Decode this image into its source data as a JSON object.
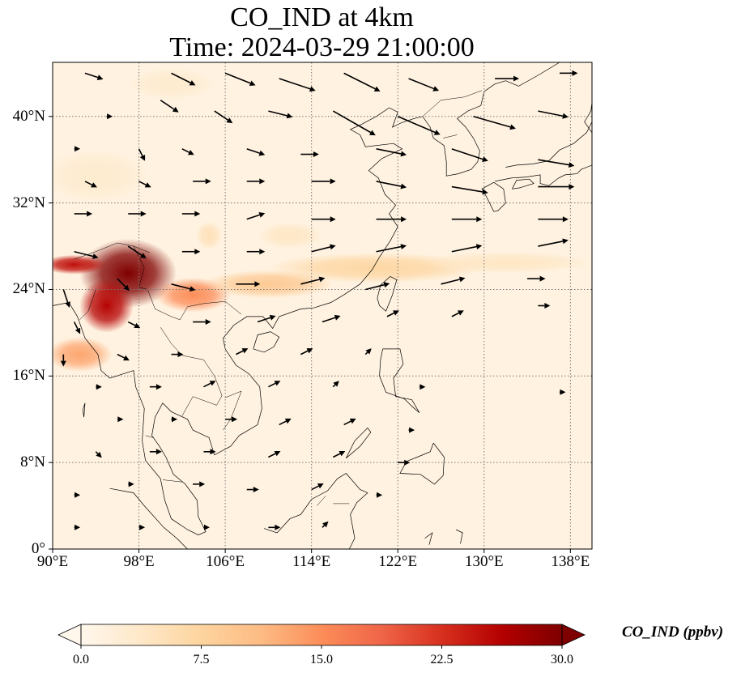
{
  "title": {
    "line1": "CO_IND at 4km",
    "line2": "Time: 2024-03-29 21:00:00"
  },
  "map": {
    "lon_range": [
      90,
      140
    ],
    "lat_range": [
      0,
      45
    ],
    "gridlines": true,
    "lat_ticks": [
      {
        "value": 0,
        "label": "0°"
      },
      {
        "value": 8,
        "label": "8°N"
      },
      {
        "value": 16,
        "label": "16°N"
      },
      {
        "value": 24,
        "label": "24°N"
      },
      {
        "value": 32,
        "label": "32°N"
      },
      {
        "value": 40,
        "label": "40°N"
      }
    ],
    "lon_ticks": [
      {
        "value": 90,
        "label": "90°E"
      },
      {
        "value": 98,
        "label": "98°E"
      },
      {
        "value": 106,
        "label": "106°E"
      },
      {
        "value": 114,
        "label": "114°E"
      },
      {
        "value": 122,
        "label": "122°E"
      },
      {
        "value": 130,
        "label": "130°E"
      },
      {
        "value": 138,
        "label": "138°E"
      }
    ],
    "field": "CO_IND",
    "plumes": [
      {
        "lon": 97,
        "lat": 25.5,
        "rlon": 4.5,
        "rlat": 3.2,
        "value": 30
      },
      {
        "lon": 95,
        "lat": 22.5,
        "rlon": 2.5,
        "rlat": 2.5,
        "value": 26
      },
      {
        "lon": 92,
        "lat": 26.3,
        "rlon": 3,
        "rlat": 0.9,
        "value": 25
      },
      {
        "lon": 103,
        "lat": 23.5,
        "rlon": 3.5,
        "rlat": 1.6,
        "value": 15
      },
      {
        "lon": 110,
        "lat": 24.5,
        "rlon": 6,
        "rlat": 1.3,
        "value": 9
      },
      {
        "lon": 120,
        "lat": 26,
        "rlon": 10,
        "rlat": 1.4,
        "value": 7
      },
      {
        "lon": 132,
        "lat": 26.5,
        "rlon": 8,
        "rlat": 1.0,
        "value": 4
      },
      {
        "lon": 104.5,
        "lat": 29,
        "rlon": 1.2,
        "rlat": 1.3,
        "value": 5
      },
      {
        "lon": 112,
        "lat": 29,
        "rlon": 3,
        "rlat": 1.2,
        "value": 4
      },
      {
        "lon": 92.5,
        "lat": 18,
        "rlon": 3,
        "rlat": 1.6,
        "value": 13
      },
      {
        "lon": 94,
        "lat": 34.5,
        "rlon": 5,
        "rlat": 2.5,
        "value": 3
      },
      {
        "lon": 101,
        "lat": 43,
        "rlon": 4,
        "rlat": 1.5,
        "value": 3
      }
    ],
    "wind_arrows": [
      {
        "lon": 93,
        "lat": 44,
        "u": 3,
        "v": -1
      },
      {
        "lon": 101,
        "lat": 44,
        "u": 4,
        "v": -2
      },
      {
        "lon": 106,
        "lat": 44,
        "u": 5,
        "v": -2
      },
      {
        "lon": 111,
        "lat": 43.5,
        "u": 6,
        "v": -2
      },
      {
        "lon": 117,
        "lat": 44,
        "u": 6,
        "v": -3
      },
      {
        "lon": 123,
        "lat": 43.5,
        "u": 5,
        "v": -2
      },
      {
        "lon": 131,
        "lat": 43.5,
        "u": 4,
        "v": 0
      },
      {
        "lon": 137,
        "lat": 44,
        "u": 3,
        "v": 0
      },
      {
        "lon": 95,
        "lat": 40,
        "u": 1,
        "v": 0
      },
      {
        "lon": 100,
        "lat": 41.5,
        "u": 3,
        "v": -2
      },
      {
        "lon": 105,
        "lat": 40.5,
        "u": 3,
        "v": -2
      },
      {
        "lon": 110,
        "lat": 40.5,
        "u": 4,
        "v": -1
      },
      {
        "lon": 116,
        "lat": 40.5,
        "u": 7,
        "v": -4
      },
      {
        "lon": 122,
        "lat": 40,
        "u": 7,
        "v": -3
      },
      {
        "lon": 129,
        "lat": 40,
        "u": 7,
        "v": -2
      },
      {
        "lon": 135,
        "lat": 40.5,
        "u": 5,
        "v": -1
      },
      {
        "lon": 92,
        "lat": 37,
        "u": 1,
        "v": 0
      },
      {
        "lon": 98,
        "lat": 37,
        "u": 1,
        "v": -2
      },
      {
        "lon": 102,
        "lat": 37,
        "u": 2,
        "v": -1
      },
      {
        "lon": 108,
        "lat": 37,
        "u": 3,
        "v": -1
      },
      {
        "lon": 113,
        "lat": 36.5,
        "u": 3,
        "v": 0
      },
      {
        "lon": 120,
        "lat": 37,
        "u": 5,
        "v": -1
      },
      {
        "lon": 127,
        "lat": 37,
        "u": 6,
        "v": -2
      },
      {
        "lon": 135,
        "lat": 36,
        "u": 6,
        "v": -1
      },
      {
        "lon": 93,
        "lat": 34,
        "u": 2,
        "v": -1
      },
      {
        "lon": 98,
        "lat": 34,
        "u": 2,
        "v": -1
      },
      {
        "lon": 103,
        "lat": 34,
        "u": 3,
        "v": 0
      },
      {
        "lon": 108,
        "lat": 34,
        "u": 3,
        "v": 0
      },
      {
        "lon": 114,
        "lat": 34,
        "u": 4,
        "v": 0
      },
      {
        "lon": 120,
        "lat": 34,
        "u": 5,
        "v": -1
      },
      {
        "lon": 127,
        "lat": 33.5,
        "u": 6,
        "v": -1
      },
      {
        "lon": 135,
        "lat": 33.5,
        "u": 6,
        "v": 0
      },
      {
        "lon": 92,
        "lat": 31,
        "u": 3,
        "v": 0
      },
      {
        "lon": 97,
        "lat": 31,
        "u": 3,
        "v": 0
      },
      {
        "lon": 102,
        "lat": 31,
        "u": 3,
        "v": 0
      },
      {
        "lon": 108,
        "lat": 30.5,
        "u": 3,
        "v": 1
      },
      {
        "lon": 114,
        "lat": 30.5,
        "u": 4,
        "v": 0
      },
      {
        "lon": 120,
        "lat": 30.5,
        "u": 5,
        "v": 0
      },
      {
        "lon": 127,
        "lat": 30.5,
        "u": 5,
        "v": 0
      },
      {
        "lon": 135,
        "lat": 30.5,
        "u": 5,
        "v": 0
      },
      {
        "lon": 92,
        "lat": 27.5,
        "u": 4,
        "v": -1
      },
      {
        "lon": 97,
        "lat": 28,
        "u": 3,
        "v": -2
      },
      {
        "lon": 102,
        "lat": 27.5,
        "u": 3,
        "v": 0
      },
      {
        "lon": 108,
        "lat": 27.5,
        "u": 3,
        "v": 0
      },
      {
        "lon": 114,
        "lat": 27.5,
        "u": 4,
        "v": 1
      },
      {
        "lon": 120,
        "lat": 27.5,
        "u": 5,
        "v": 1
      },
      {
        "lon": 127,
        "lat": 27.5,
        "u": 5,
        "v": 1
      },
      {
        "lon": 135,
        "lat": 28,
        "u": 5,
        "v": 1
      },
      {
        "lon": 91,
        "lat": 24,
        "u": 1,
        "v": -3
      },
      {
        "lon": 96,
        "lat": 25,
        "u": 2,
        "v": -2
      },
      {
        "lon": 101,
        "lat": 24.5,
        "u": 4,
        "v": -1
      },
      {
        "lon": 107,
        "lat": 24.5,
        "u": 4,
        "v": 0
      },
      {
        "lon": 113,
        "lat": 24.5,
        "u": 4,
        "v": 1
      },
      {
        "lon": 119,
        "lat": 24,
        "u": 4,
        "v": 1
      },
      {
        "lon": 126,
        "lat": 24.5,
        "u": 4,
        "v": 1
      },
      {
        "lon": 134,
        "lat": 25,
        "u": 3,
        "v": 0
      },
      {
        "lon": 92,
        "lat": 21,
        "u": 1,
        "v": -2
      },
      {
        "lon": 97,
        "lat": 21,
        "u": 2,
        "v": -1
      },
      {
        "lon": 103,
        "lat": 21,
        "u": 3,
        "v": 0
      },
      {
        "lon": 109,
        "lat": 21,
        "u": 3,
        "v": 1
      },
      {
        "lon": 115,
        "lat": 21,
        "u": 3,
        "v": 1
      },
      {
        "lon": 121,
        "lat": 21.5,
        "u": 2,
        "v": 1
      },
      {
        "lon": 127,
        "lat": 21.5,
        "u": 2,
        "v": 1
      },
      {
        "lon": 135,
        "lat": 22.5,
        "u": 2,
        "v": 0
      },
      {
        "lon": 91,
        "lat": 18,
        "u": 0,
        "v": -2
      },
      {
        "lon": 96,
        "lat": 18,
        "u": 2,
        "v": -1
      },
      {
        "lon": 101,
        "lat": 18,
        "u": 2,
        "v": 0
      },
      {
        "lon": 107,
        "lat": 18,
        "u": 2,
        "v": 1
      },
      {
        "lon": 113,
        "lat": 18,
        "u": 2,
        "v": 1
      },
      {
        "lon": 119,
        "lat": 18,
        "u": 1,
        "v": 1
      },
      {
        "lon": 94,
        "lat": 15,
        "u": 1,
        "v": 0
      },
      {
        "lon": 99,
        "lat": 15,
        "u": 2,
        "v": 0
      },
      {
        "lon": 104,
        "lat": 15,
        "u": 2,
        "v": 1
      },
      {
        "lon": 110,
        "lat": 15,
        "u": 2,
        "v": 1
      },
      {
        "lon": 116,
        "lat": 15,
        "u": 1,
        "v": 1
      },
      {
        "lon": 124,
        "lat": 15,
        "u": 1,
        "v": 0
      },
      {
        "lon": 137,
        "lat": 14.5,
        "u": 1,
        "v": 0
      },
      {
        "lon": 96,
        "lat": 12,
        "u": 1,
        "v": 0
      },
      {
        "lon": 101,
        "lat": 12,
        "u": 1,
        "v": 0
      },
      {
        "lon": 106,
        "lat": 12,
        "u": 2,
        "v": 0
      },
      {
        "lon": 111,
        "lat": 11.5,
        "u": 2,
        "v": 1
      },
      {
        "lon": 117,
        "lat": 11.5,
        "u": 2,
        "v": 1
      },
      {
        "lon": 123,
        "lat": 11,
        "u": 1,
        "v": 0
      },
      {
        "lon": 94,
        "lat": 9,
        "u": 1,
        "v": -1
      },
      {
        "lon": 99,
        "lat": 9,
        "u": 2,
        "v": 0
      },
      {
        "lon": 104,
        "lat": 9,
        "u": 2,
        "v": 0
      },
      {
        "lon": 110,
        "lat": 8.5,
        "u": 2,
        "v": 1
      },
      {
        "lon": 116,
        "lat": 8.5,
        "u": 2,
        "v": 1
      },
      {
        "lon": 122,
        "lat": 8,
        "u": 2,
        "v": 0
      },
      {
        "lon": 92,
        "lat": 5,
        "u": 1,
        "v": 0
      },
      {
        "lon": 97,
        "lat": 6,
        "u": 1,
        "v": 0
      },
      {
        "lon": 103,
        "lat": 6,
        "u": 2,
        "v": 0
      },
      {
        "lon": 108,
        "lat": 5.5,
        "u": 2,
        "v": 0
      },
      {
        "lon": 114,
        "lat": 5.5,
        "u": 2,
        "v": 1
      },
      {
        "lon": 120,
        "lat": 5,
        "u": 1,
        "v": 0
      },
      {
        "lon": 92,
        "lat": 2,
        "u": 1,
        "v": 0
      },
      {
        "lon": 98,
        "lat": 2,
        "u": 1,
        "v": 0
      },
      {
        "lon": 104,
        "lat": 2,
        "u": 1,
        "v": 0
      },
      {
        "lon": 110,
        "lat": 2,
        "u": 2,
        "v": 0
      },
      {
        "lon": 115,
        "lat": 2,
        "u": 1,
        "v": 1
      }
    ]
  },
  "colorbar": {
    "label": "CO_IND (ppbv)",
    "min": 0.0,
    "max": 30.0,
    "extend": "both",
    "colormap": "OrRd",
    "ticks": [
      {
        "value": 0.0,
        "label": "0.0"
      },
      {
        "value": 7.5,
        "label": "7.5"
      },
      {
        "value": 15.0,
        "label": "15.0"
      },
      {
        "value": 22.5,
        "label": "22.5"
      },
      {
        "value": 30.0,
        "label": "30.0"
      }
    ],
    "colors": [
      "#fff7ec",
      "#fee8c8",
      "#fdd49e",
      "#fdbb84",
      "#fc8d59",
      "#ef6548",
      "#d7301f",
      "#b30000",
      "#7f0000"
    ]
  }
}
